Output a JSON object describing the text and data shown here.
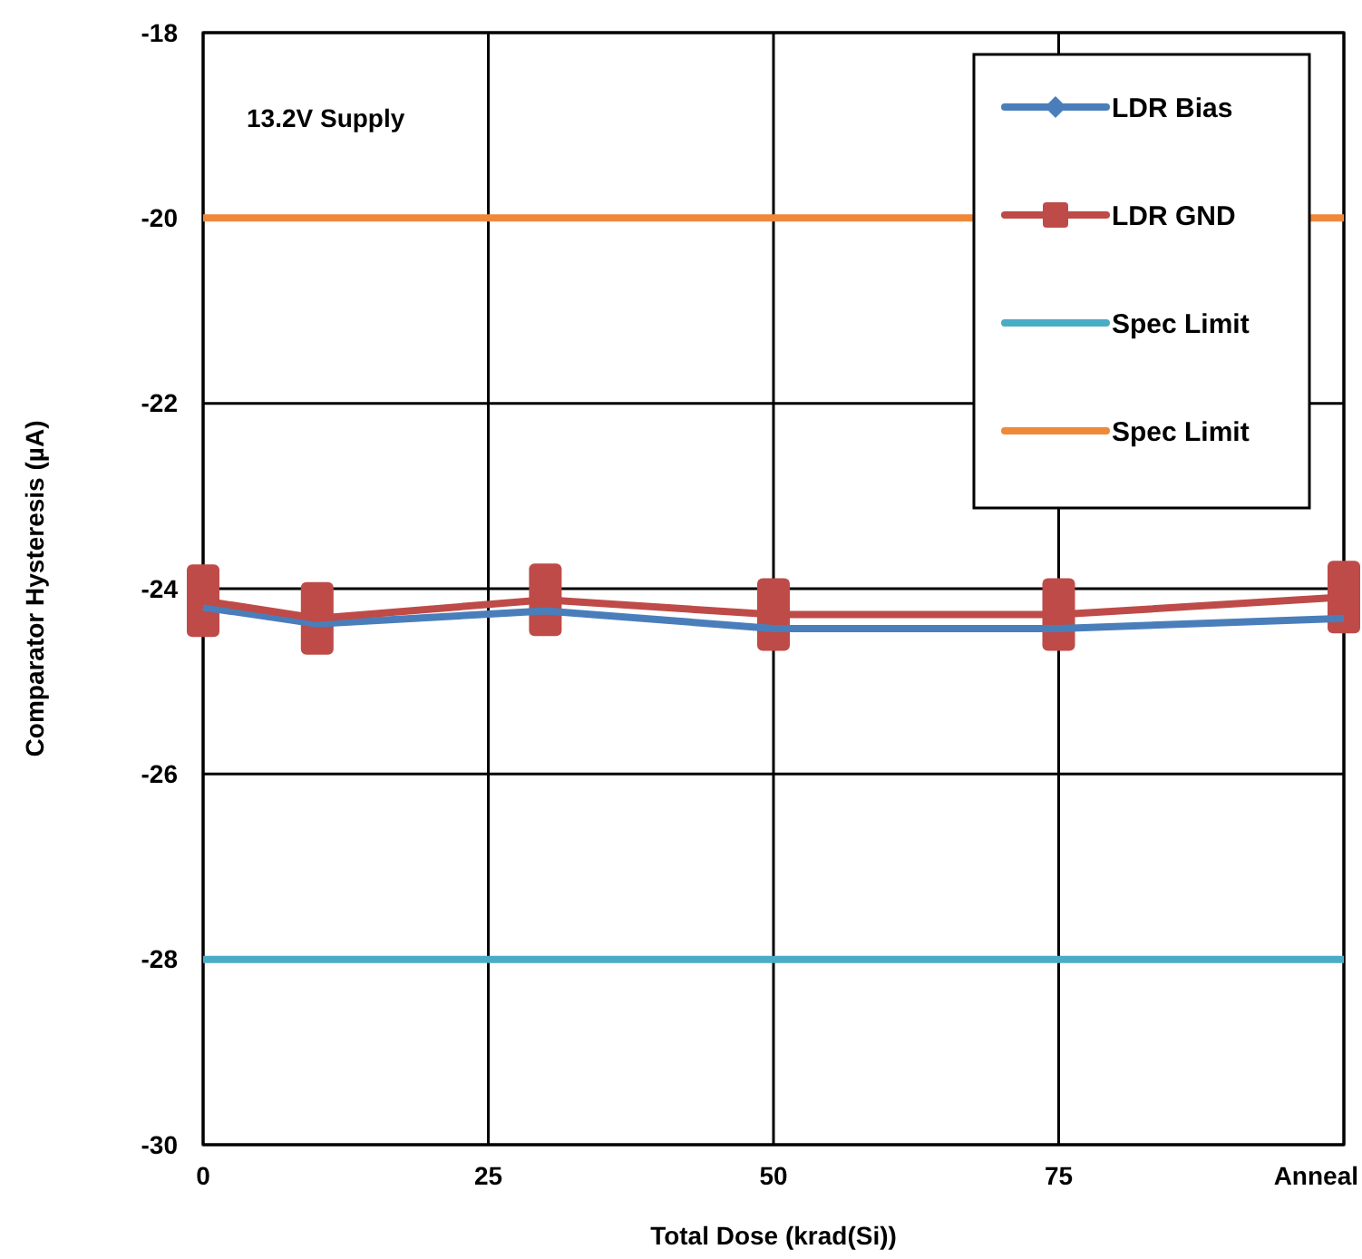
{
  "chart_data": {
    "type": "line",
    "xlabel": "Total Dose (krad(Si))",
    "ylabel": "Comparator Hysteresis (µA)",
    "annotations": [
      "13.2V Supply"
    ],
    "xlim": [
      0,
      100
    ],
    "xticks": [
      0,
      25,
      50,
      75,
      {
        "value": 100,
        "label": "Anneal"
      }
    ],
    "ylim": [
      -30,
      -18
    ],
    "yticks": [
      -30,
      -28,
      -26,
      -24,
      -22,
      -20,
      -18
    ],
    "grid": true,
    "legend": "top right",
    "line_style": "solid",
    "series": [
      {
        "name": "LDR Bias",
        "color": "#4a7ebb",
        "marker": "diamond",
        "x": [
          0,
          10,
          30,
          50,
          75,
          100
        ],
        "values": [
          -24.2,
          -24.38,
          -24.24,
          -24.43,
          -24.43,
          -24.32
        ]
      },
      {
        "name": "LDR GND",
        "color": "#be4b48",
        "marker": "square",
        "x": [
          0,
          10,
          30,
          50,
          75,
          100
        ],
        "values": [
          -24.13,
          -24.32,
          -24.12,
          -24.28,
          -24.28,
          -24.09
        ]
      },
      {
        "name": "Spec Limit",
        "color": "#4bacc6",
        "marker": "none",
        "x": [
          0,
          100
        ],
        "values": [
          -28,
          -28
        ]
      },
      {
        "name": "Spec Limit",
        "color": "#f0883a",
        "marker": "none",
        "x": [
          0,
          100
        ],
        "values": [
          -20,
          -20
        ]
      }
    ]
  }
}
